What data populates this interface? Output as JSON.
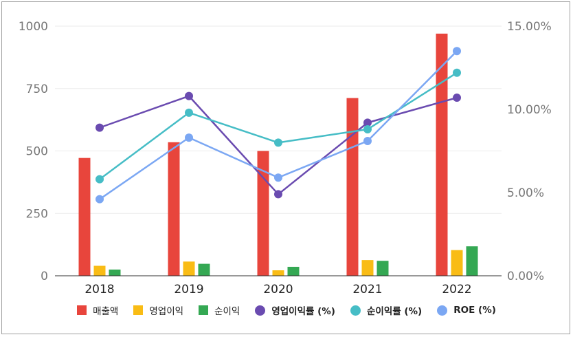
{
  "chart_data": {
    "type": "bar",
    "categories": [
      "2018",
      "2019",
      "2020",
      "2021",
      "2022"
    ],
    "y_left": {
      "ticks": [
        "0",
        "250",
        "500",
        "750",
        "1000"
      ],
      "lim": [
        0,
        1000
      ]
    },
    "y_right": {
      "ticks": [
        "0.00%",
        "5.00%",
        "10.00%",
        "15.00%"
      ],
      "lim": [
        0,
        15
      ]
    },
    "bar_series": [
      {
        "name": "매출액",
        "color": "#e8453c",
        "values": [
          472,
          535,
          500,
          712,
          970
        ]
      },
      {
        "name": "영업이익",
        "color": "#f9bc15",
        "values": [
          40,
          57,
          22,
          63,
          103
        ]
      },
      {
        "name": "순이익",
        "color": "#34a853",
        "values": [
          25,
          48,
          36,
          60,
          118
        ]
      }
    ],
    "line_series": [
      {
        "name": "영업이익률 (%)",
        "color": "#6a4bb0",
        "values": [
          8.9,
          10.8,
          4.9,
          9.2,
          10.7
        ]
      },
      {
        "name": "순이익률 (%)",
        "color": "#46bdc6",
        "values": [
          5.8,
          9.8,
          8.0,
          8.8,
          12.2
        ]
      },
      {
        "name": "ROE (%)",
        "color": "#7ba7f3",
        "values": [
          4.6,
          8.3,
          5.9,
          8.1,
          13.5
        ]
      }
    ],
    "grid": true,
    "legend_position": "bottom"
  }
}
